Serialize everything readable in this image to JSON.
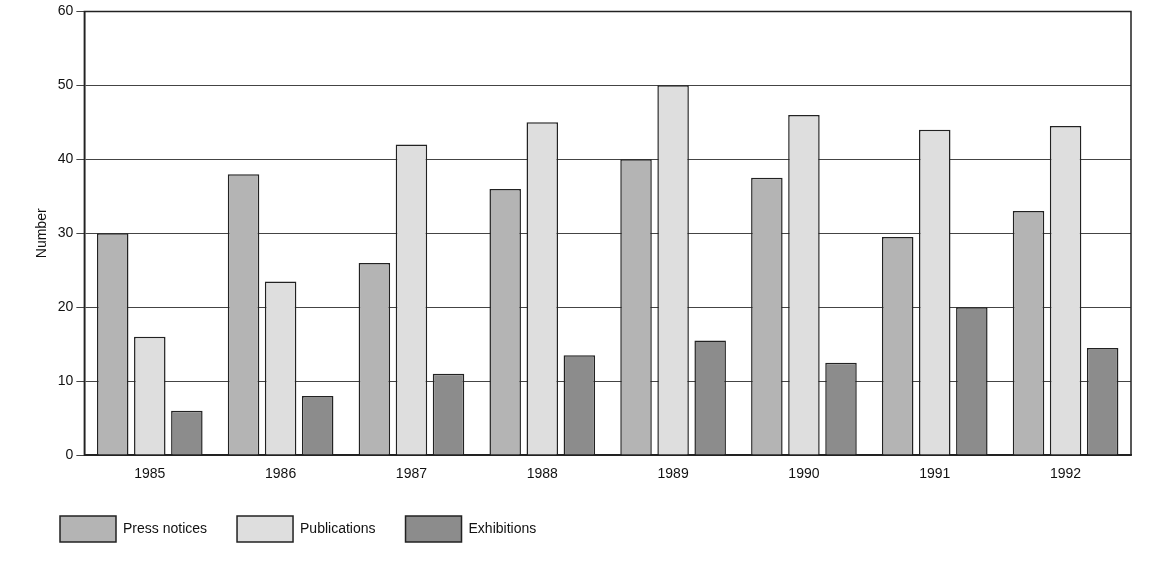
{
  "chart_data": {
    "type": "bar",
    "ylabel": "Number",
    "categories": [
      "1985",
      "1986",
      "1987",
      "1988",
      "1989",
      "1990",
      "1991",
      "1992"
    ],
    "series": [
      {
        "name": "Press notices",
        "color": "#b4b4b4",
        "values": [
          30,
          38,
          26,
          36,
          40,
          37.5,
          29.5,
          33
        ]
      },
      {
        "name": "Publications",
        "color": "#dedede",
        "values": [
          16,
          23.5,
          42,
          45,
          50,
          46,
          44,
          44.5
        ]
      },
      {
        "name": "Exhibitions",
        "color": "#8c8c8c",
        "values": [
          6,
          8,
          11,
          13.5,
          15.5,
          12.5,
          20,
          14.5
        ]
      }
    ],
    "ylim": [
      0,
      60
    ],
    "yticks": [
      0,
      10,
      20,
      30,
      40,
      50,
      60
    ],
    "grid": "y",
    "legend": "bottom left"
  }
}
